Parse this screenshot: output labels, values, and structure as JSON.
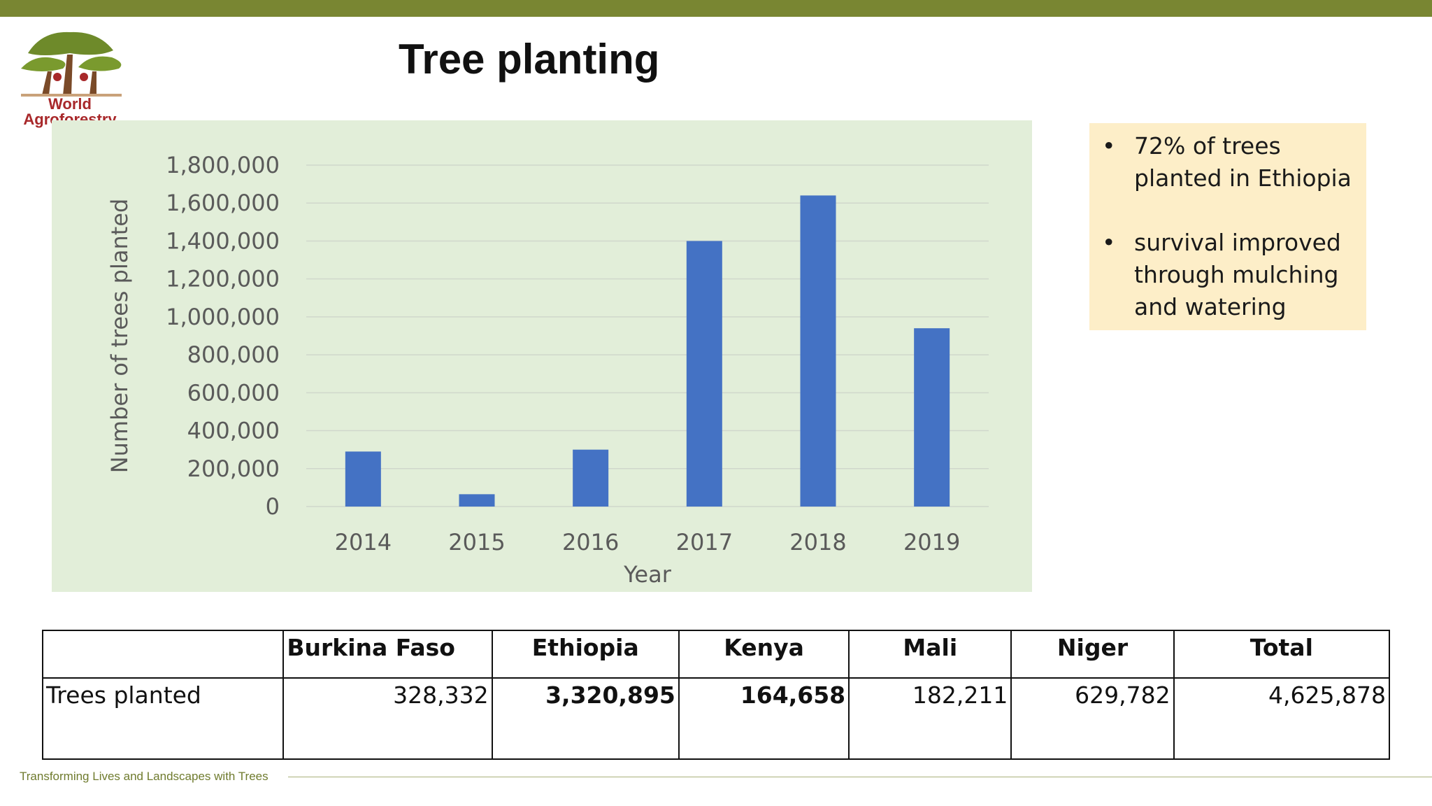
{
  "logo": {
    "text": "World Agroforestry"
  },
  "title": "Tree planting",
  "chart_data": {
    "type": "bar",
    "categories": [
      "2014",
      "2015",
      "2016",
      "2017",
      "2018",
      "2019"
    ],
    "values": [
      290000,
      65000,
      300000,
      1400000,
      1640000,
      940000
    ],
    "xlabel": "Year",
    "ylabel": "Number of trees planted",
    "ylim": [
      0,
      1800000
    ],
    "yticks": [
      "0",
      "200,000",
      "400,000",
      "600,000",
      "800,000",
      "1,000,000",
      "1,200,000",
      "1,400,000",
      "1,600,000",
      "1,800,000"
    ],
    "grid": true,
    "colors": {
      "bar": "#4472c4",
      "panel": "#e2eed9",
      "grid": "#d0d7cc"
    }
  },
  "notes": [
    "72% of trees planted in Ethiopia",
    "survival improved through mulching and watering"
  ],
  "table": {
    "headers": [
      "",
      "Burkina Faso",
      "Ethiopia",
      "Kenya",
      "Mali",
      "Niger",
      "Total"
    ],
    "row_label": "Trees planted",
    "values": [
      "328,332",
      "3,320,895",
      "164,658",
      "182,211",
      "629,782",
      "4,625,878"
    ]
  },
  "footer": "Transforming Lives and Landscapes with Trees",
  "colors": {
    "top_bar": "#798632",
    "note_bg": "#fdeec8"
  }
}
